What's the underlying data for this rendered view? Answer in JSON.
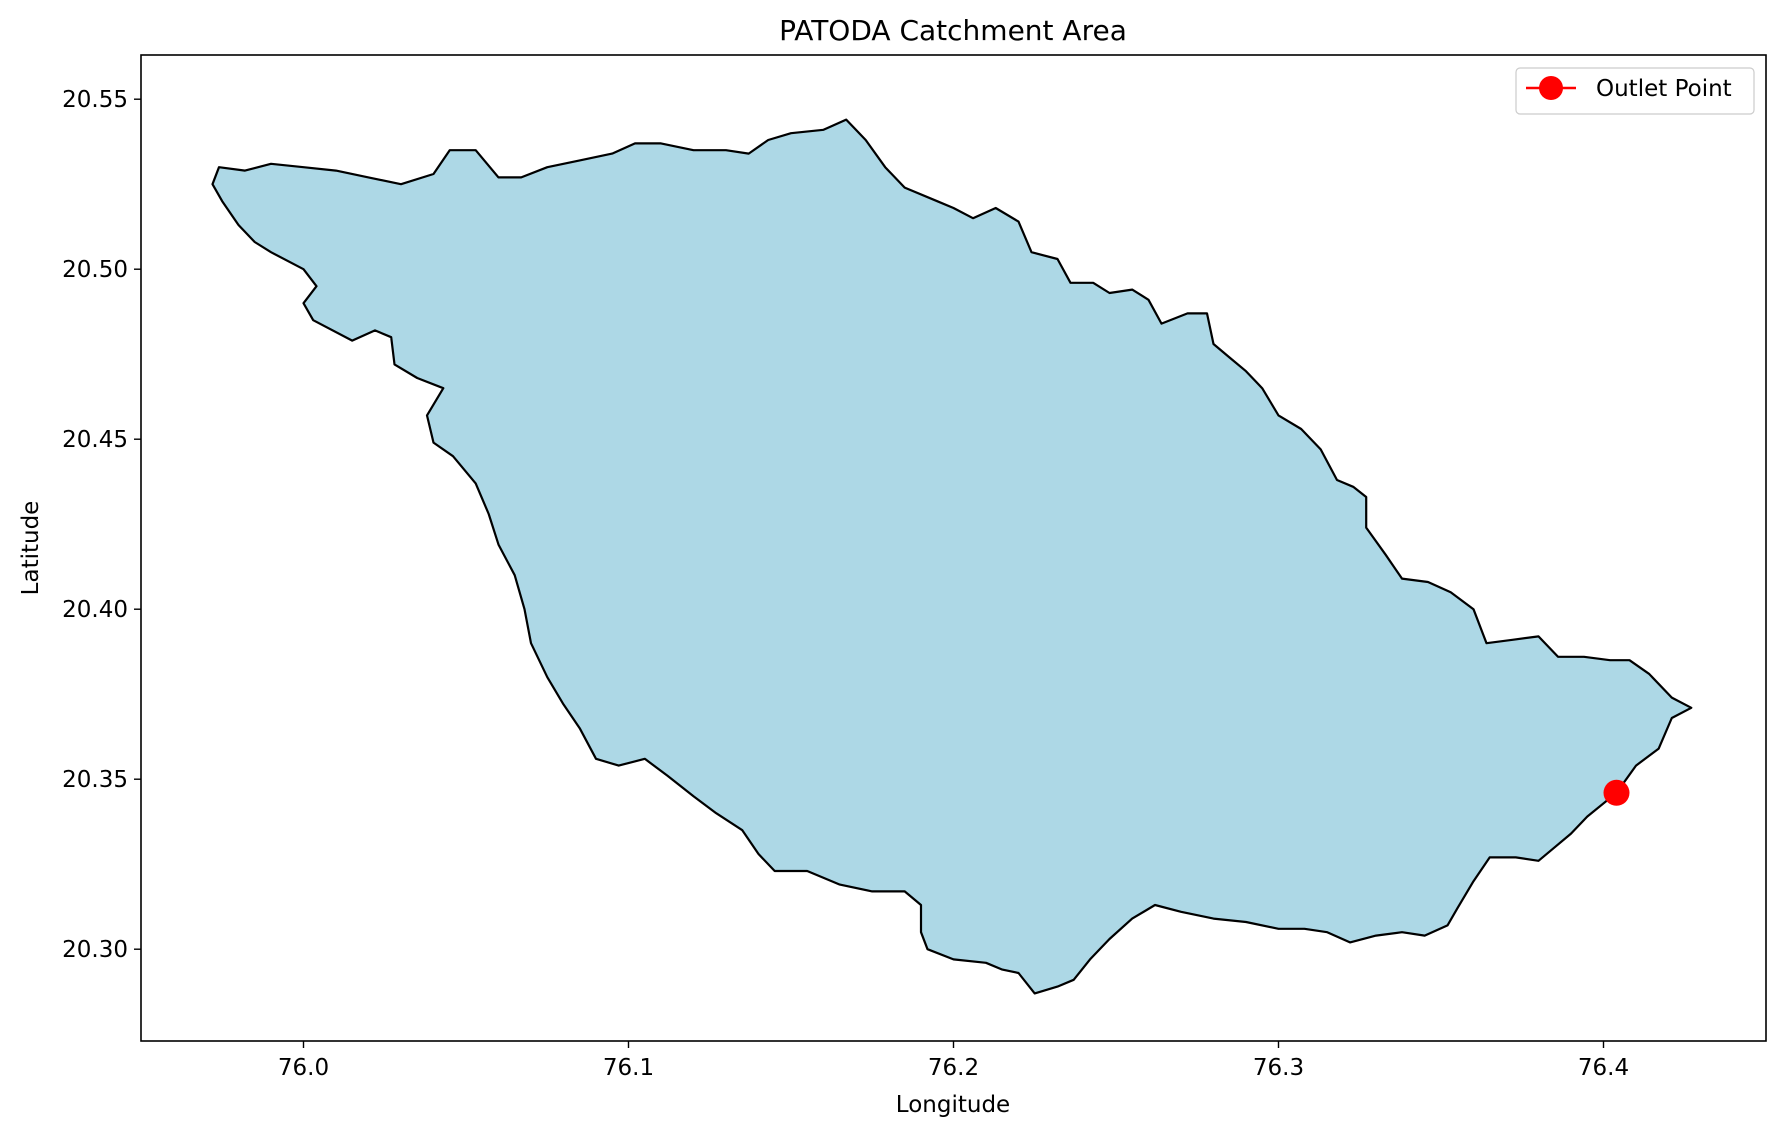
{
  "chart_data": {
    "type": "map",
    "title": "PATODA Catchment Area",
    "xlabel": "Longitude",
    "ylabel": "Latitude",
    "xlim": [
      75.95,
      76.45
    ],
    "ylim": [
      20.273,
      20.563
    ],
    "xticks": [
      76.0,
      76.1,
      76.2,
      76.3,
      76.4
    ],
    "yticks": [
      20.3,
      20.35,
      20.4,
      20.45,
      20.5,
      20.55
    ],
    "xtick_labels": [
      "76.0",
      "76.1",
      "76.2",
      "76.3",
      "76.4"
    ],
    "ytick_labels": [
      "20.30",
      "20.35",
      "20.40",
      "20.45",
      "20.50",
      "20.55"
    ],
    "grid": false,
    "legend": {
      "position": "top-right",
      "entries": [
        "Outlet Point"
      ]
    },
    "colors": {
      "catchment_fill": "#add8e6",
      "catchment_edge": "#000000",
      "outlet": "#ff0000"
    },
    "catchment_boundary": [
      [
        75.974,
        20.53
      ],
      [
        75.982,
        20.529
      ],
      [
        75.99,
        20.531
      ],
      [
        76.0,
        20.53
      ],
      [
        76.01,
        20.529
      ],
      [
        76.02,
        20.527
      ],
      [
        76.03,
        20.525
      ],
      [
        76.04,
        20.528
      ],
      [
        76.045,
        20.535
      ],
      [
        76.053,
        20.535
      ],
      [
        76.06,
        20.527
      ],
      [
        76.067,
        20.527
      ],
      [
        76.075,
        20.53
      ],
      [
        76.085,
        20.532
      ],
      [
        76.095,
        20.534
      ],
      [
        76.102,
        20.537
      ],
      [
        76.11,
        20.537
      ],
      [
        76.12,
        20.535
      ],
      [
        76.13,
        20.535
      ],
      [
        76.137,
        20.534
      ],
      [
        76.143,
        20.538
      ],
      [
        76.15,
        20.54
      ],
      [
        76.16,
        20.541
      ],
      [
        76.167,
        20.544
      ],
      [
        76.173,
        20.538
      ],
      [
        76.179,
        20.53
      ],
      [
        76.185,
        20.524
      ],
      [
        76.195,
        20.52
      ],
      [
        76.2,
        20.518
      ],
      [
        76.206,
        20.515
      ],
      [
        76.213,
        20.518
      ],
      [
        76.22,
        20.514
      ],
      [
        76.224,
        20.505
      ],
      [
        76.232,
        20.503
      ],
      [
        76.236,
        20.496
      ],
      [
        76.243,
        20.496
      ],
      [
        76.248,
        20.493
      ],
      [
        76.255,
        20.494
      ],
      [
        76.26,
        20.491
      ],
      [
        76.264,
        20.484
      ],
      [
        76.272,
        20.487
      ],
      [
        76.278,
        20.487
      ],
      [
        76.28,
        20.478
      ],
      [
        76.285,
        20.474
      ],
      [
        76.29,
        20.47
      ],
      [
        76.295,
        20.465
      ],
      [
        76.3,
        20.457
      ],
      [
        76.307,
        20.453
      ],
      [
        76.313,
        20.447
      ],
      [
        76.318,
        20.438
      ],
      [
        76.323,
        20.436
      ],
      [
        76.327,
        20.433
      ],
      [
        76.327,
        20.424
      ],
      [
        76.333,
        20.416
      ],
      [
        76.338,
        20.409
      ],
      [
        76.346,
        20.408
      ],
      [
        76.353,
        20.405
      ],
      [
        76.36,
        20.4
      ],
      [
        76.364,
        20.39
      ],
      [
        76.372,
        20.391
      ],
      [
        76.38,
        20.392
      ],
      [
        76.386,
        20.386
      ],
      [
        76.394,
        20.386
      ],
      [
        76.402,
        20.385
      ],
      [
        76.408,
        20.385
      ],
      [
        76.414,
        20.381
      ],
      [
        76.421,
        20.374
      ],
      [
        76.427,
        20.371
      ],
      [
        76.421,
        20.368
      ],
      [
        76.417,
        20.359
      ],
      [
        76.41,
        20.354
      ],
      [
        76.404,
        20.346
      ],
      [
        76.395,
        20.339
      ],
      [
        76.39,
        20.334
      ],
      [
        76.385,
        20.33
      ],
      [
        76.38,
        20.326
      ],
      [
        76.373,
        20.327
      ],
      [
        76.365,
        20.327
      ],
      [
        76.36,
        20.32
      ],
      [
        76.355,
        20.312
      ],
      [
        76.352,
        20.307
      ],
      [
        76.345,
        20.304
      ],
      [
        76.338,
        20.305
      ],
      [
        76.33,
        20.304
      ],
      [
        76.322,
        20.302
      ],
      [
        76.315,
        20.305
      ],
      [
        76.308,
        20.306
      ],
      [
        76.3,
        20.306
      ],
      [
        76.29,
        20.308
      ],
      [
        76.28,
        20.309
      ],
      [
        76.27,
        20.311
      ],
      [
        76.262,
        20.313
      ],
      [
        76.255,
        20.309
      ],
      [
        76.248,
        20.303
      ],
      [
        76.242,
        20.297
      ],
      [
        76.237,
        20.291
      ],
      [
        76.232,
        20.289
      ],
      [
        76.225,
        20.287
      ],
      [
        76.22,
        20.293
      ],
      [
        76.215,
        20.294
      ],
      [
        76.21,
        20.296
      ],
      [
        76.2,
        20.297
      ],
      [
        76.192,
        20.3
      ],
      [
        76.19,
        20.305
      ],
      [
        76.19,
        20.313
      ],
      [
        76.185,
        20.317
      ],
      [
        76.175,
        20.317
      ],
      [
        76.165,
        20.319
      ],
      [
        76.155,
        20.323
      ],
      [
        76.145,
        20.323
      ],
      [
        76.14,
        20.328
      ],
      [
        76.135,
        20.335
      ],
      [
        76.127,
        20.34
      ],
      [
        76.12,
        20.345
      ],
      [
        76.112,
        20.351
      ],
      [
        76.105,
        20.356
      ],
      [
        76.097,
        20.354
      ],
      [
        76.09,
        20.356
      ],
      [
        76.085,
        20.365
      ],
      [
        76.08,
        20.372
      ],
      [
        76.075,
        20.38
      ],
      [
        76.07,
        20.39
      ],
      [
        76.068,
        20.4
      ],
      [
        76.065,
        20.41
      ],
      [
        76.06,
        20.419
      ],
      [
        76.057,
        20.428
      ],
      [
        76.053,
        20.437
      ],
      [
        76.046,
        20.445
      ],
      [
        76.04,
        20.449
      ],
      [
        76.038,
        20.457
      ],
      [
        76.043,
        20.465
      ],
      [
        76.035,
        20.468
      ],
      [
        76.028,
        20.472
      ],
      [
        76.027,
        20.48
      ],
      [
        76.022,
        20.482
      ],
      [
        76.015,
        20.479
      ],
      [
        76.003,
        20.485
      ],
      [
        76.0,
        20.49
      ],
      [
        76.004,
        20.495
      ],
      [
        76.0,
        20.5
      ],
      [
        75.99,
        20.505
      ],
      [
        75.985,
        20.508
      ],
      [
        75.98,
        20.513
      ],
      [
        75.975,
        20.52
      ],
      [
        75.972,
        20.525
      ]
    ],
    "outlet_point": {
      "name": "Outlet Point",
      "x": 76.404,
      "y": 20.346
    }
  }
}
